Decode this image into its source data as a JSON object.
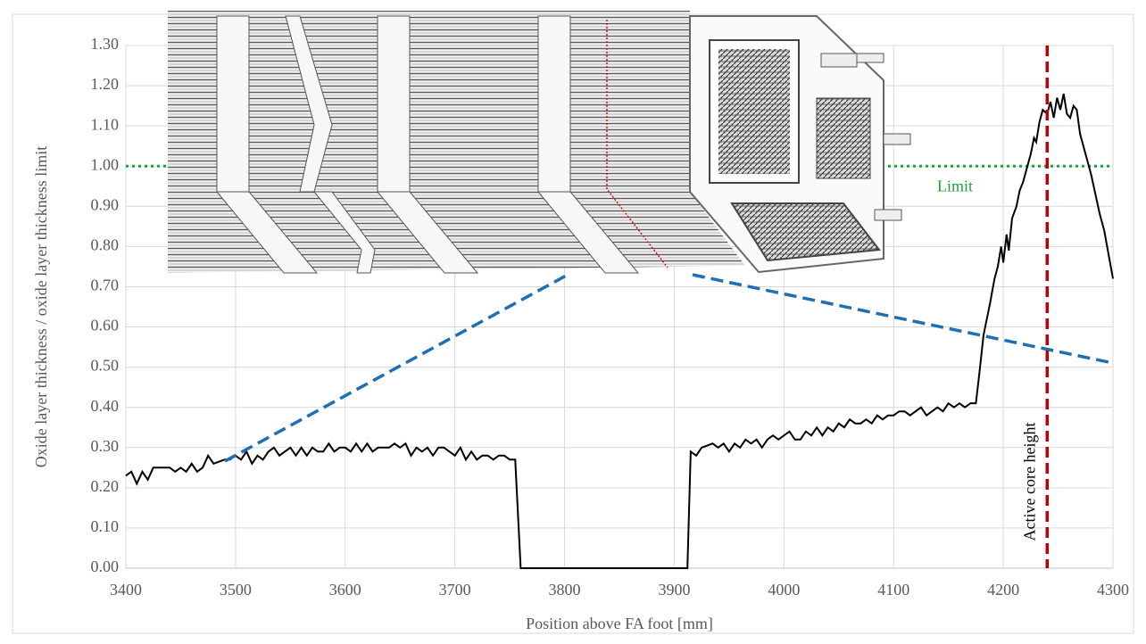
{
  "chart_data": {
    "type": "line",
    "xlabel": "Position above FA foot [mm]",
    "ylabel": "Oxide layer thickness / oxide layer thickness limit",
    "x": [
      3400,
      3405,
      3410,
      3415,
      3420,
      3425,
      3430,
      3440,
      3445,
      3450,
      3455,
      3460,
      3465,
      3470,
      3475,
      3480,
      3490,
      3495,
      3500,
      3505,
      3510,
      3515,
      3520,
      3525,
      3530,
      3535,
      3540,
      3545,
      3550,
      3555,
      3560,
      3565,
      3570,
      3575,
      3580,
      3585,
      3590,
      3595,
      3600,
      3605,
      3610,
      3615,
      3620,
      3625,
      3630,
      3640,
      3645,
      3650,
      3655,
      3660,
      3665,
      3670,
      3675,
      3680,
      3685,
      3690,
      3695,
      3700,
      3705,
      3710,
      3715,
      3720,
      3725,
      3730,
      3735,
      3740,
      3745,
      3750,
      3755,
      3760,
      3912,
      3915,
      3920,
      3925,
      3935,
      3940,
      3945,
      3950,
      3955,
      3960,
      3965,
      3970,
      3975,
      3980,
      3985,
      3990,
      3995,
      4000,
      4005,
      4010,
      4015,
      4020,
      4025,
      4030,
      4035,
      4040,
      4045,
      4050,
      4055,
      4060,
      4065,
      4070,
      4075,
      4080,
      4085,
      4090,
      4095,
      4100,
      4105,
      4110,
      4115,
      4120,
      4125,
      4130,
      4135,
      4140,
      4145,
      4150,
      4155,
      4160,
      4165,
      4170,
      4175,
      4178,
      4182,
      4185,
      4188,
      4192,
      4195,
      4198,
      4200,
      4203,
      4205,
      4208,
      4212,
      4215,
      4218,
      4222,
      4225,
      4228,
      4230,
      4233,
      4236,
      4240,
      4243,
      4246,
      4249,
      4252,
      4255,
      4258,
      4261,
      4264,
      4267,
      4270,
      4273,
      4276,
      4280,
      4284,
      4288,
      4292,
      4296,
      4300
    ],
    "series": [
      {
        "color": "#000000",
        "values": [
          0.23,
          0.24,
          0.21,
          0.24,
          0.22,
          0.25,
          0.25,
          0.25,
          0.24,
          0.25,
          0.24,
          0.26,
          0.24,
          0.25,
          0.28,
          0.26,
          0.27,
          0.27,
          0.28,
          0.27,
          0.29,
          0.26,
          0.28,
          0.27,
          0.29,
          0.3,
          0.28,
          0.29,
          0.3,
          0.28,
          0.3,
          0.28,
          0.3,
          0.29,
          0.29,
          0.31,
          0.29,
          0.3,
          0.3,
          0.29,
          0.31,
          0.29,
          0.31,
          0.29,
          0.3,
          0.3,
          0.31,
          0.3,
          0.31,
          0.28,
          0.3,
          0.29,
          0.3,
          0.28,
          0.3,
          0.3,
          0.29,
          0.28,
          0.3,
          0.27,
          0.29,
          0.27,
          0.28,
          0.28,
          0.27,
          0.28,
          0.28,
          0.27,
          0.27,
          0,
          0,
          0.29,
          0.28,
          0.3,
          0.31,
          0.3,
          0.31,
          0.29,
          0.31,
          0.3,
          0.32,
          0.31,
          0.32,
          0.3,
          0.32,
          0.33,
          0.32,
          0.33,
          0.34,
          0.32,
          0.32,
          0.34,
          0.33,
          0.35,
          0.33,
          0.35,
          0.34,
          0.36,
          0.35,
          0.37,
          0.36,
          0.36,
          0.37,
          0.36,
          0.38,
          0.37,
          0.38,
          0.38,
          0.39,
          0.39,
          0.38,
          0.39,
          0.4,
          0.38,
          0.39,
          0.4,
          0.39,
          0.41,
          0.4,
          0.41,
          0.4,
          0.41,
          0.41,
          0.48,
          0.58,
          0.62,
          0.66,
          0.72,
          0.75,
          0.8,
          0.76,
          0.83,
          0.79,
          0.87,
          0.9,
          0.94,
          0.96,
          1.0,
          1.03,
          1.07,
          1.06,
          1.11,
          1.14,
          1.13,
          1.16,
          1.12,
          1.17,
          1.14,
          1.18,
          1.13,
          1.12,
          1.15,
          1.14,
          1.08,
          1.05,
          1.02,
          0.98,
          0.93,
          0.88,
          0.84,
          0.78,
          0.72
        ]
      }
    ],
    "xlim": [
      3400,
      4300
    ],
    "xticks": [
      3400,
      3500,
      3600,
      3700,
      3800,
      3900,
      4000,
      4100,
      4200,
      4300
    ],
    "ylim": [
      0,
      1.3
    ],
    "yticks": [
      {
        "value": 0,
        "label": "0.00"
      },
      {
        "value": 0.1,
        "label": "0.10"
      },
      {
        "value": 0.2,
        "label": "0.20"
      },
      {
        "value": 0.3,
        "label": "0.30"
      },
      {
        "value": 0.4,
        "label": "0.40"
      },
      {
        "value": 0.5,
        "label": "0.50"
      },
      {
        "value": 0.6,
        "label": "0.60"
      },
      {
        "value": 0.7,
        "label": "0.70"
      },
      {
        "value": 0.8,
        "label": "0.80"
      },
      {
        "value": 0.9,
        "label": "0.90"
      },
      {
        "value": 1,
        "label": "1.00"
      },
      {
        "value": 1.1,
        "label": "1.10"
      },
      {
        "value": 1.2,
        "label": "1.20"
      },
      {
        "value": 1.3,
        "label": "1.30"
      }
    ],
    "grid": true,
    "hline": {
      "text": "Limit",
      "y": 1.0,
      "color": "#1aa53a"
    },
    "vline": {
      "text": "Active core height",
      "x": 4240,
      "color": "#c00000"
    }
  }
}
